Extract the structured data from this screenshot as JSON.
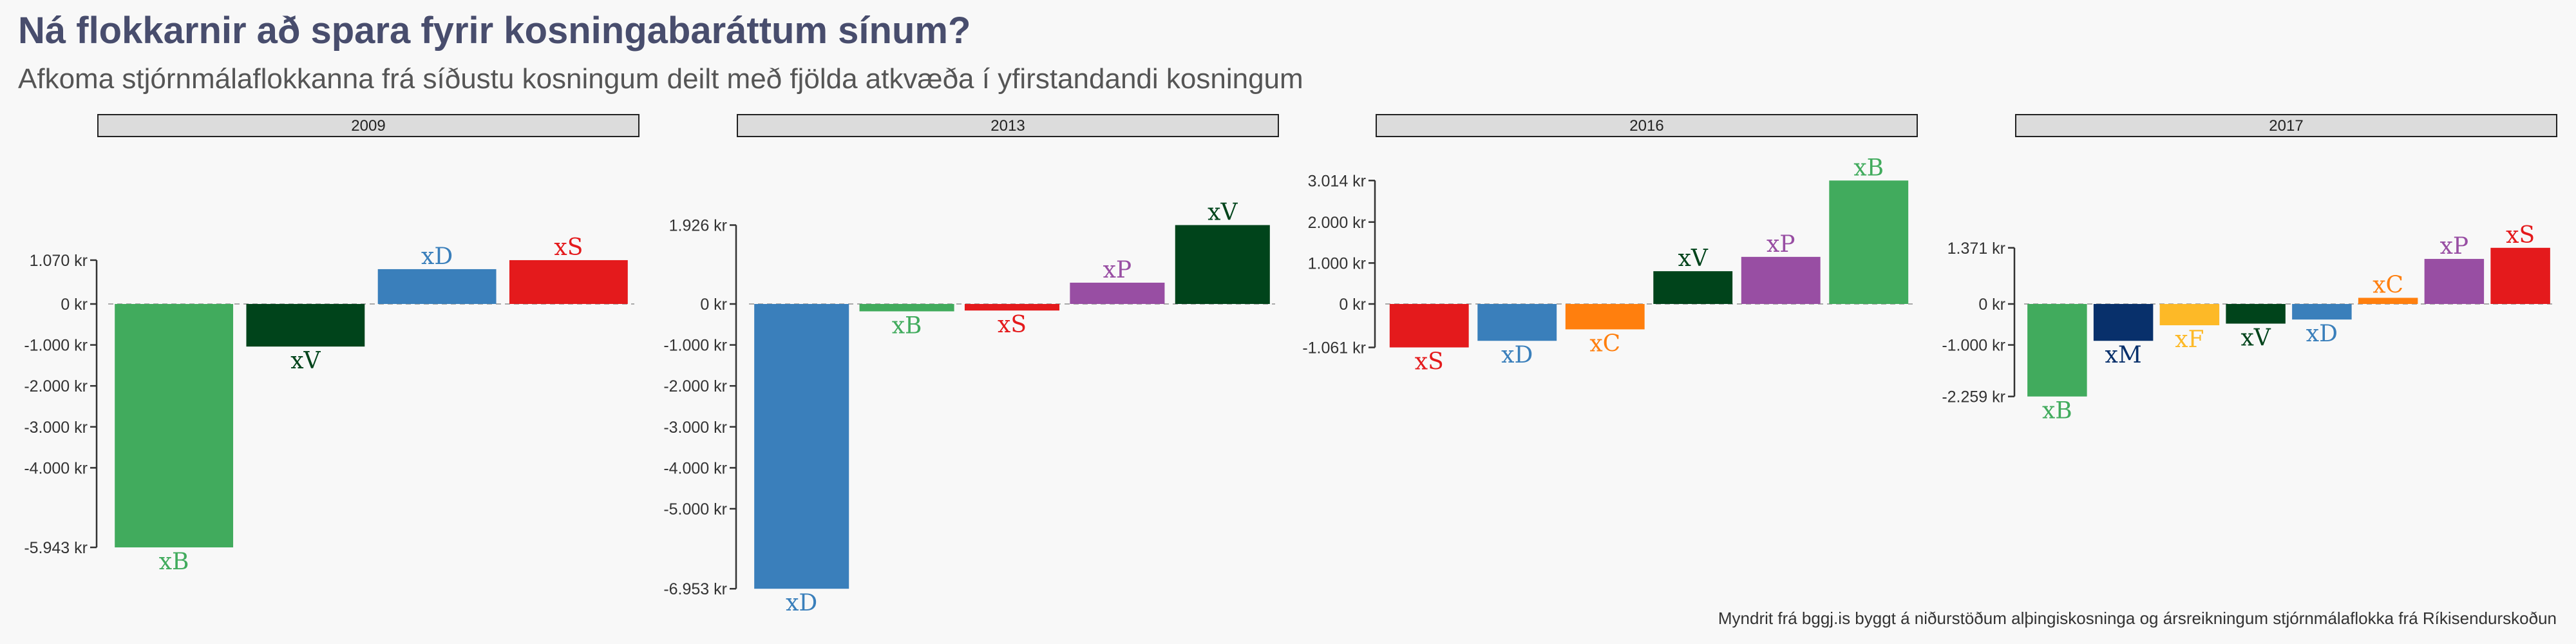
{
  "title": "Ná flokkarnir að spara fyrir kosningabaráttum sínum?",
  "subtitle": "Afkoma stjórnmálaflokkanna frá síðustu kosningum deilt með fjölda atkvæða í yfirstandandi kosningum",
  "caption": "Myndrit frá bggj.is byggt á niðurstöðum alþingiskosninga og ársreikningum stjórnmálaflokka frá Ríkisendurskoðun",
  "colors": {
    "xB": "#41ab5d",
    "xV": "#00441b",
    "xD": "#3a7fbb",
    "xS": "#e41a1c",
    "xP": "#984ea3",
    "xC": "#ff7f0e",
    "xM": "#08306b",
    "xF": "#fdb927"
  },
  "chart_data": [
    {
      "type": "bar",
      "panel": "2009",
      "categories": [
        "xB",
        "xV",
        "xD",
        "xS"
      ],
      "values": [
        -5943,
        -1040,
        850,
        1070
      ],
      "ticks": [
        1070,
        0,
        -1000,
        -2000,
        -3000,
        -4000,
        -5943
      ],
      "tick_labels": [
        "1.070 kr",
        "0 kr",
        "-1.000 kr",
        "-2.000 kr",
        "-3.000 kr",
        "-4.000 kr",
        "-5.943 kr"
      ],
      "ylim": [
        -5943,
        1070
      ]
    },
    {
      "type": "bar",
      "panel": "2013",
      "categories": [
        "xD",
        "xB",
        "xS",
        "xP",
        "xV"
      ],
      "values": [
        -6953,
        -180,
        -160,
        520,
        1926
      ],
      "ticks": [
        1926,
        0,
        -1000,
        -2000,
        -3000,
        -4000,
        -5000,
        -6953
      ],
      "tick_labels": [
        "1.926 kr",
        "0 kr",
        "-1.000 kr",
        "-2.000 kr",
        "-3.000 kr",
        "-4.000 kr",
        "-5.000 kr",
        "-6.953 kr"
      ],
      "ylim": [
        -6953,
        1926
      ]
    },
    {
      "type": "bar",
      "panel": "2016",
      "categories": [
        "xS",
        "xD",
        "xC",
        "xV",
        "xP",
        "xB"
      ],
      "values": [
        -1061,
        -900,
        -620,
        800,
        1150,
        3014
      ],
      "ticks": [
        3014,
        2000,
        1000,
        0,
        -1061
      ],
      "tick_labels": [
        "3.014 kr",
        "2.000 kr",
        "1.000 kr",
        "0 kr",
        "-1.061 kr"
      ],
      "ylim": [
        -1061,
        3014
      ]
    },
    {
      "type": "bar",
      "panel": "2017",
      "categories": [
        "xB",
        "xM",
        "xF",
        "xV",
        "xD",
        "xC",
        "xP",
        "xS"
      ],
      "values": [
        -2259,
        -900,
        -520,
        -480,
        -380,
        150,
        1100,
        1371
      ],
      "ticks": [
        1371,
        0,
        -1000,
        -2259
      ],
      "tick_labels": [
        "1.371 kr",
        "0 kr",
        "-1.000 kr",
        "-2.259 kr"
      ],
      "ylim": [
        -2259,
        1371
      ]
    }
  ]
}
